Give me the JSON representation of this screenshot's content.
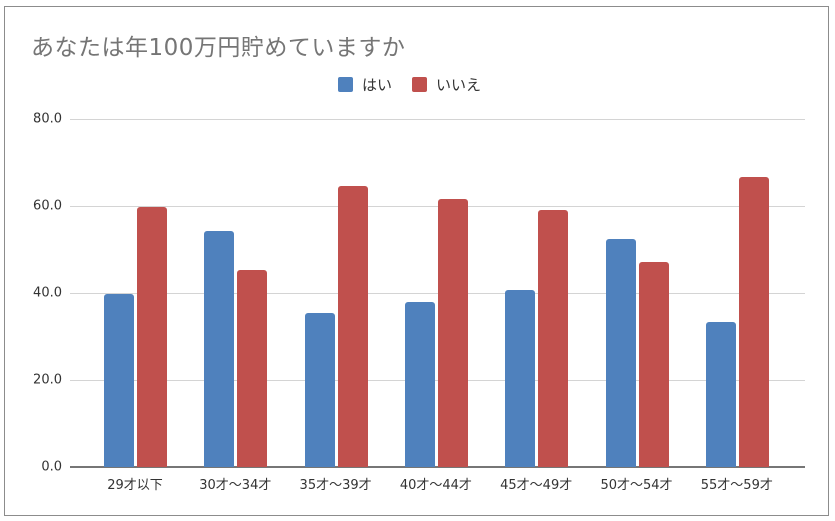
{
  "chart_data": {
    "type": "bar",
    "title": "あなたは年100万円貯めていますか",
    "xlabel": "",
    "ylabel": "",
    "ylim": [
      0,
      80
    ],
    "yticks": [
      "0.0",
      "20.0",
      "40.0",
      "60.0",
      "80.0"
    ],
    "grid": true,
    "legend_position": "top",
    "categories": [
      "29才以下",
      "30才～34才",
      "35才～39才",
      "40才～44才",
      "45才～49才",
      "50才～54才",
      "55才～59才"
    ],
    "series": [
      {
        "name": "はい",
        "color": "#4f81bd",
        "values": [
          39.8,
          54.3,
          35.4,
          37.9,
          40.7,
          52.4,
          33.3
        ]
      },
      {
        "name": "いいえ",
        "color": "#c0504d",
        "values": [
          59.8,
          45.3,
          64.6,
          61.6,
          59.1,
          47.1,
          66.7
        ]
      }
    ]
  }
}
